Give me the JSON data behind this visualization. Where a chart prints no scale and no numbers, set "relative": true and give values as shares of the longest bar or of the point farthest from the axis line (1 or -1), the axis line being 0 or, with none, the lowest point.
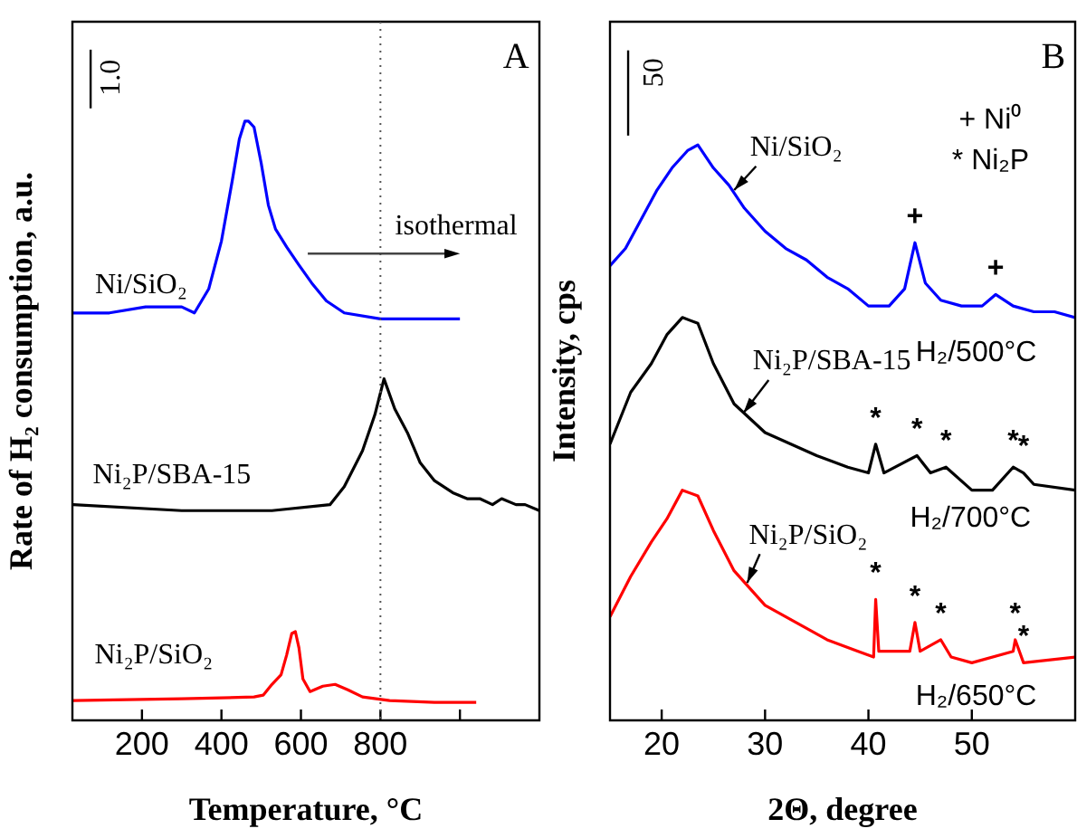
{
  "chart_data": [
    {
      "type": "line",
      "title": "A",
      "xlabel": "Temperature, °C",
      "ylabel": "Rate of H₂ consumption, a.u.",
      "relative": true,
      "xlim": [
        25,
        1200
      ],
      "xticks": [
        200,
        400,
        600,
        800,
        {
          "value": 1000,
          "label": null
        }
      ],
      "grid": false,
      "legend": false,
      "marker": "none",
      "tick_labels": "x",
      "line_style": "solid",
      "ref_lines": [
        {
          "axis": "x",
          "value": 800,
          "color": "#555555",
          "line_style": "dotted"
        }
      ],
      "annotations": [
        "1.0",
        "isothermal"
      ],
      "series": [
        {
          "name": "Ni/SiO₂",
          "color": "#0000ff",
          "x": [
            27,
            118,
            209,
            300,
            332,
            368,
            400,
            427,
            445,
            459,
            468,
            482,
            500,
            518,
            536,
            564,
            595,
            627,
            664,
            709,
            800,
            891,
            1000
          ],
          "values": [
            0.68,
            0.68,
            0.69,
            0.69,
            0.68,
            0.72,
            0.8,
            0.9,
            0.97,
            1.0,
            1.0,
            0.99,
            0.93,
            0.86,
            0.82,
            0.79,
            0.76,
            0.73,
            0.7,
            0.68,
            0.67,
            0.67,
            0.67
          ]
        },
        {
          "name": "Ni₂P/SBA-15",
          "color": "#000000",
          "x": [
            27,
            300,
            527,
            673,
            709,
            755,
            786,
            809,
            836,
            868,
            900,
            936,
            982,
            1018,
            1050,
            1082,
            1105,
            1141,
            1164,
            1200
          ],
          "values": [
            0.36,
            0.35,
            0.35,
            0.36,
            0.39,
            0.45,
            0.51,
            0.57,
            0.52,
            0.48,
            0.43,
            0.4,
            0.38,
            0.37,
            0.37,
            0.36,
            0.37,
            0.36,
            0.36,
            0.35
          ]
        },
        {
          "name": "Ni₂P/SiO₂",
          "color": "#ff0000",
          "x": [
            27,
            300,
            482,
            505,
            527,
            550,
            564,
            577,
            586,
            595,
            605,
            623,
            655,
            686,
            718,
            755,
            823,
            936,
            1041
          ],
          "values": [
            0.033,
            0.036,
            0.039,
            0.042,
            0.06,
            0.076,
            0.109,
            0.145,
            0.148,
            0.121,
            0.069,
            0.048,
            0.057,
            0.06,
            0.051,
            0.039,
            0.033,
            0.03,
            0.03
          ]
        }
      ]
    },
    {
      "type": "line",
      "title": "B",
      "xlabel": "2Θ, degree",
      "ylabel": "Intensity, cps",
      "relative": true,
      "xlim": [
        15,
        60
      ],
      "xticks": [
        20,
        30,
        40,
        50
      ],
      "grid": false,
      "legend": false,
      "marker": "none",
      "tick_labels": "x",
      "line_style": "solid",
      "annotations": [
        "50",
        "+ Ni⁰",
        "* Ni₂P",
        "H₂/500°C",
        "H₂/700°C",
        "H₂/650°C",
        {
          "text": "+",
          "x": 44.5,
          "y": 0.83
        },
        {
          "text": "+",
          "x": 52.3,
          "y": 0.74
        },
        {
          "text": "*",
          "x": 40.7,
          "y": 0.48
        },
        {
          "text": "*",
          "x": 44.7,
          "y": 0.46
        },
        {
          "text": "*",
          "x": 47.5,
          "y": 0.44
        },
        {
          "text": "*",
          "x": 54,
          "y": 0.44
        },
        {
          "text": "*",
          "x": 55,
          "y": 0.43
        },
        {
          "text": "*",
          "x": 40.7,
          "y": 0.21
        },
        {
          "text": "*",
          "x": 44.5,
          "y": 0.17
        },
        {
          "text": "*",
          "x": 47,
          "y": 0.14
        },
        {
          "text": "*",
          "x": 54.2,
          "y": 0.14
        },
        {
          "text": "*",
          "x": 55,
          "y": 0.1
        }
      ],
      "series": [
        {
          "name": "Ni/SiO₂",
          "color": "#0000ff",
          "x": [
            15,
            16.5,
            18,
            19.5,
            21,
            22.5,
            23.5,
            25,
            26.5,
            28,
            30,
            32,
            34,
            36,
            38,
            40,
            42,
            43.5,
            44.5,
            45.5,
            47,
            49,
            51,
            52.3,
            54,
            56,
            58,
            60
          ],
          "values": [
            0.79,
            0.82,
            0.87,
            0.92,
            0.96,
            0.99,
            1.0,
            0.96,
            0.93,
            0.89,
            0.85,
            0.82,
            0.8,
            0.77,
            0.75,
            0.72,
            0.72,
            0.75,
            0.83,
            0.76,
            0.73,
            0.72,
            0.72,
            0.74,
            0.72,
            0.71,
            0.71,
            0.7
          ]
        },
        {
          "name": "Ni₂P/SBA-15",
          "color": "#000000",
          "x": [
            15,
            17,
            19,
            20.5,
            22,
            23.5,
            25,
            27,
            30,
            35,
            38,
            40,
            40.7,
            41.5,
            44.7,
            46,
            47.5,
            50,
            52,
            54,
            55,
            56,
            60
          ],
          "values": [
            0.48,
            0.57,
            0.62,
            0.67,
            0.7,
            0.69,
            0.62,
            0.55,
            0.5,
            0.46,
            0.44,
            0.43,
            0.48,
            0.43,
            0.46,
            0.43,
            0.44,
            0.4,
            0.4,
            0.44,
            0.43,
            0.41,
            0.4
          ]
        },
        {
          "name": "Ni₂P/SiO₂",
          "color": "#ff0000",
          "x": [
            15,
            17,
            19,
            20.5,
            22,
            23.5,
            25,
            27,
            30,
            33,
            36,
            39,
            40.5,
            40.7,
            41,
            44,
            44.5,
            45,
            47,
            48,
            50,
            54,
            54.2,
            55,
            60
          ],
          "values": [
            0.18,
            0.25,
            0.31,
            0.35,
            0.4,
            0.39,
            0.33,
            0.26,
            0.2,
            0.17,
            0.14,
            0.12,
            0.11,
            0.21,
            0.12,
            0.12,
            0.17,
            0.12,
            0.14,
            0.11,
            0.1,
            0.12,
            0.14,
            0.1,
            0.11
          ]
        }
      ]
    }
  ]
}
